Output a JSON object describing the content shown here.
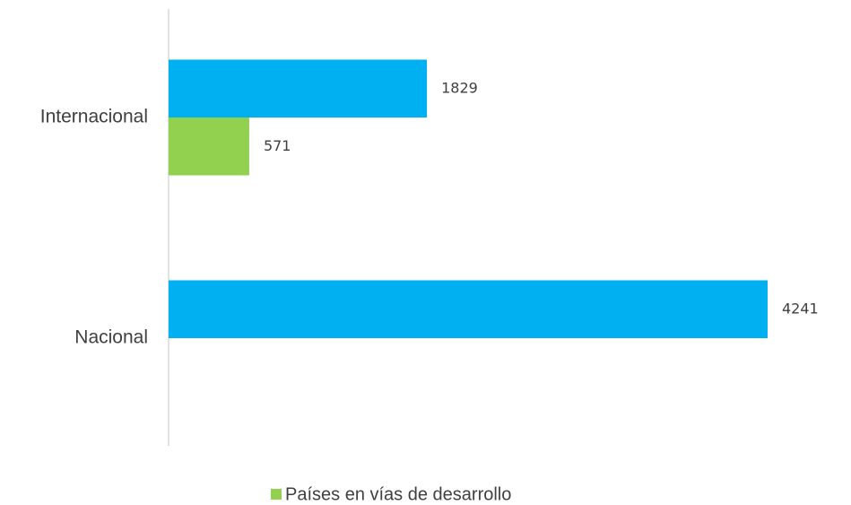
{
  "chart_data": {
    "type": "bar",
    "orientation": "horizontal",
    "categories": [
      "Internacional",
      "Nacional"
    ],
    "series": [
      {
        "color": "#00b0f0",
        "values": [
          1829,
          4241
        ]
      },
      {
        "name": "Países en vías de desarrollo",
        "color": "#92d050",
        "values": [
          571,
          null
        ]
      }
    ],
    "legend": "bottom"
  }
}
